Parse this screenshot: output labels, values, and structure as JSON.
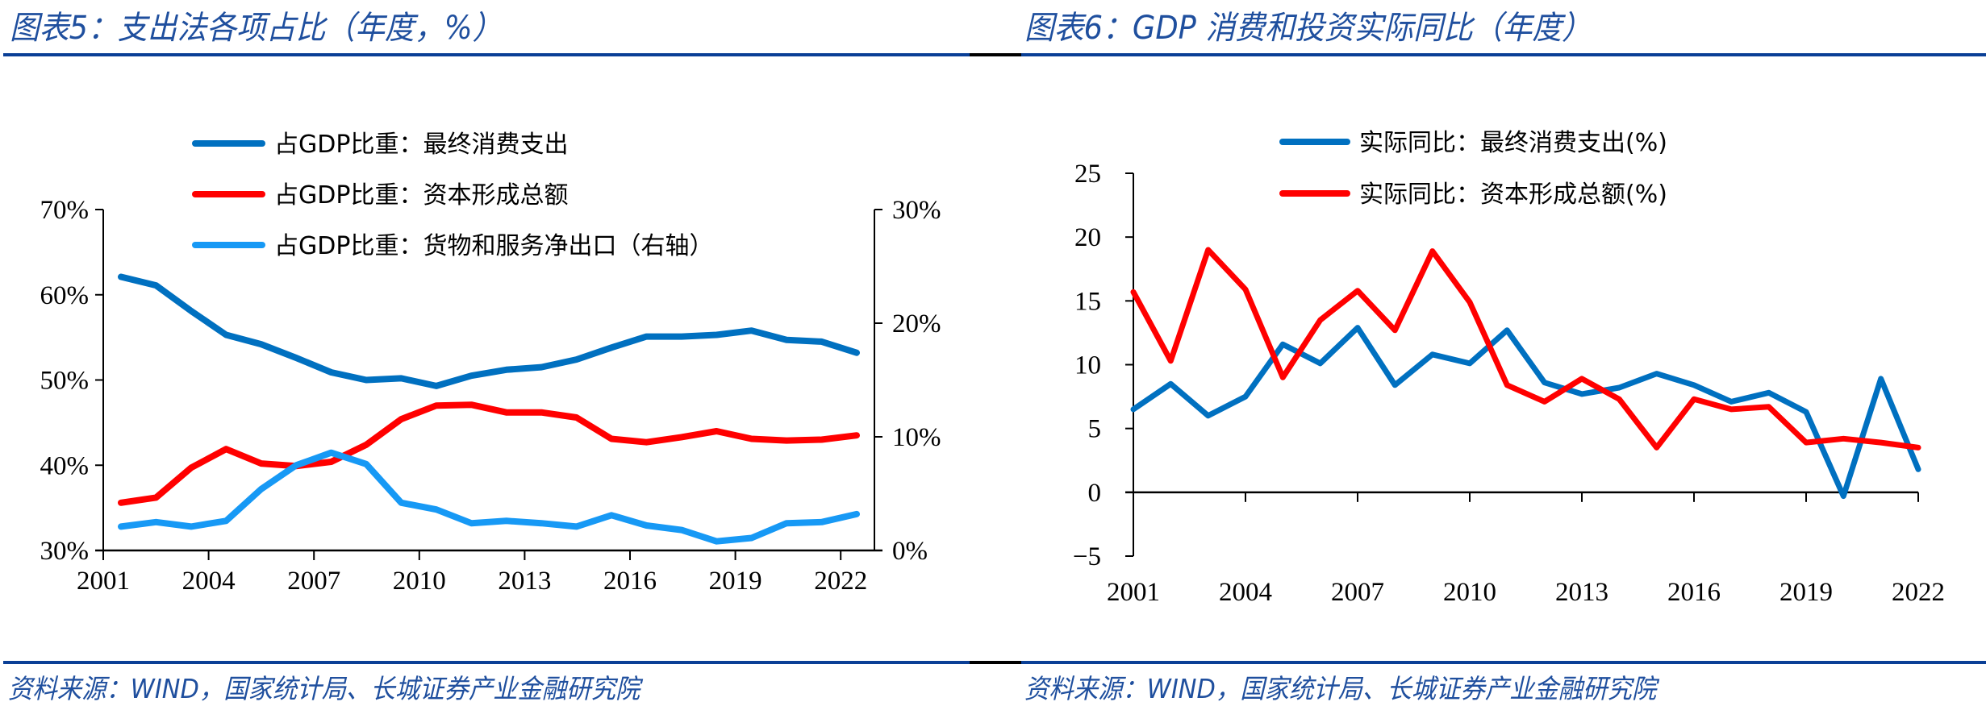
{
  "figure5": {
    "title": "图表5：支出法各项占比（年度，%）",
    "source": "资料来源：WIND，国家统计局、长城证券产业金融研究院"
  },
  "figure6": {
    "title": "图表6：GDP 消费和投资实际同比（年度）",
    "source": "资料来源：WIND，国家统计局、长城证券产业金融研究院"
  },
  "colors": {
    "title_blue": "#1f4f9e",
    "rule_blue": "#0a3f96",
    "series_dark_blue": "#0070c0",
    "series_red": "#ff0000",
    "series_light_blue": "#1799f5"
  },
  "chart_data": [
    {
      "type": "line",
      "title": "支出法各项占比（年度，%）",
      "x": [
        2001,
        2002,
        2003,
        2004,
        2005,
        2006,
        2007,
        2008,
        2009,
        2010,
        2011,
        2012,
        2013,
        2014,
        2015,
        2016,
        2017,
        2018,
        2019,
        2020,
        2021,
        2022
      ],
      "x_tick_labels": [
        "2001",
        "2004",
        "2007",
        "2010",
        "2013",
        "2016",
        "2019",
        "2022"
      ],
      "y_left": {
        "range": [
          30,
          70
        ],
        "ticks": [
          30,
          40,
          50,
          60,
          70
        ],
        "tick_labels": [
          "30%",
          "40%",
          "50%",
          "60%",
          "70%"
        ]
      },
      "y_right": {
        "range": [
          0,
          30
        ],
        "ticks": [
          0,
          10,
          20,
          30
        ],
        "tick_labels": [
          "0%",
          "10%",
          "20%",
          "30%"
        ]
      },
      "grid": false,
      "legend_position": "top-center",
      "series": [
        {
          "name": "占GDP比重：最终消费支出",
          "axis": "left",
          "color": "#0070c0",
          "values": [
            62.1,
            61.1,
            58.1,
            55.3,
            54.2,
            52.6,
            50.9,
            50.0,
            50.2,
            49.3,
            50.5,
            51.2,
            51.5,
            52.4,
            53.8,
            55.1,
            55.1,
            55.3,
            55.8,
            54.7,
            54.5,
            53.2
          ]
        },
        {
          "name": "占GDP比重：资本形成总额",
          "axis": "left",
          "color": "#ff0000",
          "values": [
            35.6,
            36.2,
            39.7,
            41.9,
            40.2,
            39.9,
            40.4,
            42.4,
            45.4,
            47.0,
            47.1,
            46.2,
            46.2,
            45.6,
            43.1,
            42.7,
            43.3,
            44.0,
            43.1,
            42.9,
            43.0,
            43.5
          ]
        },
        {
          "name": "占GDP比重：货物和服务净出口（右轴）",
          "axis": "right",
          "color": "#1799f5",
          "values": [
            2.1,
            2.5,
            2.1,
            2.6,
            5.4,
            7.5,
            8.6,
            7.6,
            4.2,
            3.6,
            2.4,
            2.6,
            2.4,
            2.1,
            3.1,
            2.2,
            1.8,
            0.8,
            1.1,
            2.4,
            2.5,
            3.2
          ]
        }
      ]
    },
    {
      "type": "line",
      "title": "GDP 消费和投资实际同比（年度）",
      "x": [
        2001,
        2002,
        2003,
        2004,
        2005,
        2006,
        2007,
        2008,
        2009,
        2010,
        2011,
        2012,
        2013,
        2014,
        2015,
        2016,
        2017,
        2018,
        2019,
        2020,
        2021,
        2022
      ],
      "x_tick_labels": [
        "2001",
        "2004",
        "2007",
        "2010",
        "2013",
        "2016",
        "2019",
        "2022"
      ],
      "y": {
        "range": [
          -5,
          25
        ],
        "ticks": [
          -5,
          0,
          5,
          10,
          15,
          20,
          25
        ],
        "tick_labels": [
          "−5",
          "0",
          "5",
          "10",
          "15",
          "20",
          "25"
        ]
      },
      "grid": false,
      "legend_position": "top-center",
      "series": [
        {
          "name": "实际同比：最终消费支出(%)",
          "color": "#0070c0",
          "values": [
            6.5,
            8.5,
            6.0,
            7.5,
            11.6,
            10.1,
            12.9,
            8.4,
            10.8,
            10.1,
            12.7,
            8.6,
            7.7,
            8.2,
            9.3,
            8.4,
            7.1,
            7.8,
            6.3,
            -0.3,
            8.9,
            1.8
          ]
        },
        {
          "name": "实际同比：资本形成总额(%)",
          "color": "#ff0000",
          "values": [
            15.7,
            10.3,
            19.0,
            15.9,
            9.0,
            13.5,
            15.8,
            12.7,
            18.9,
            14.9,
            8.4,
            7.1,
            8.9,
            7.3,
            3.5,
            7.3,
            6.5,
            6.7,
            3.9,
            4.2,
            3.9,
            3.5
          ]
        }
      ]
    }
  ]
}
